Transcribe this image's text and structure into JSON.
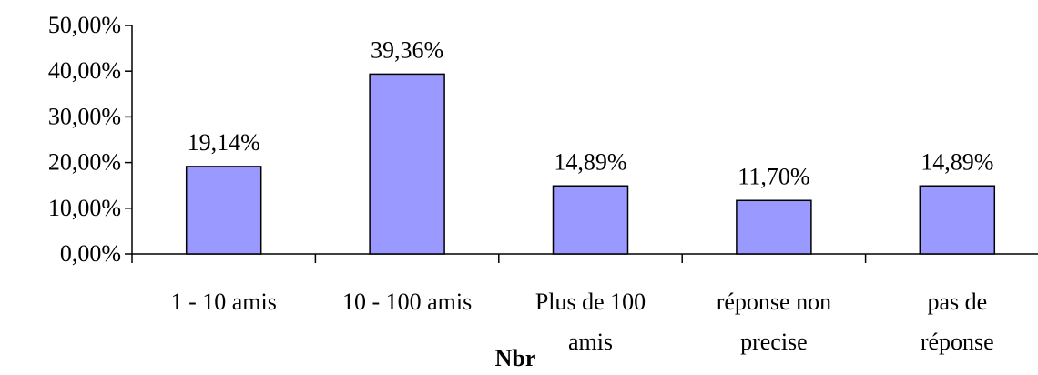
{
  "colors": {
    "bar_fill": "#9999FF",
    "bar_stroke": "#000000",
    "axis": "#000000",
    "background": "#FFFFFF"
  },
  "chart_data": {
    "type": "bar",
    "title": "",
    "xlabel": "Nbr",
    "ylabel": "",
    "grid": false,
    "legend": "none",
    "ylim": [
      0,
      50
    ],
    "y_ticks": [
      0,
      10,
      20,
      30,
      40,
      50
    ],
    "y_tick_labels": [
      "0,00%",
      "10,00%",
      "20,00%",
      "30,00%",
      "40,00%",
      "50,00%"
    ],
    "categories": [
      [
        "1 - 10 amis"
      ],
      [
        "10 - 100 amis"
      ],
      [
        "Plus de 100",
        "amis"
      ],
      [
        "réponse non",
        "precise"
      ],
      [
        "pas de",
        "réponse"
      ]
    ],
    "values": [
      19.14,
      39.36,
      14.89,
      11.7,
      14.89
    ],
    "data_labels": [
      "19,14%",
      "39,36%",
      "14,89%",
      "11,70%",
      "14,89%"
    ]
  }
}
